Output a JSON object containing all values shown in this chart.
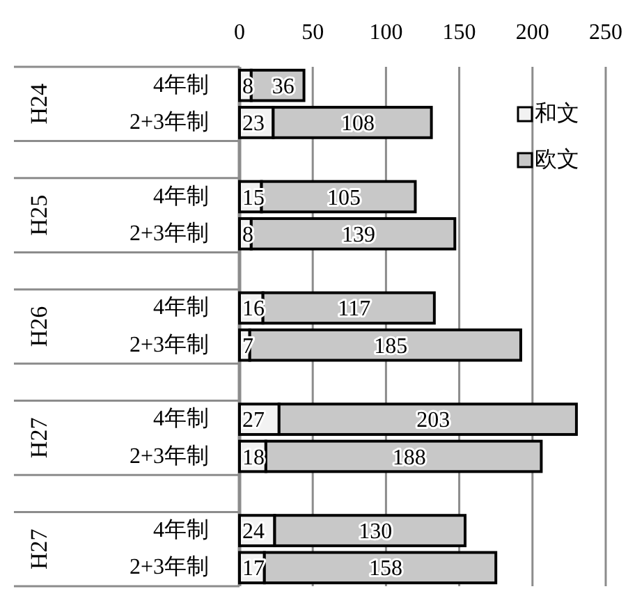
{
  "chart_data": {
    "type": "bar",
    "orientation": "horizontal",
    "stacked": true,
    "categories": [
      "4年制",
      "2+3年制",
      null,
      "4年制",
      "2+3年制",
      null,
      "4年制",
      "2+3年制",
      null,
      "4年制",
      "2+3年制",
      null,
      "4年制",
      "2+3年制"
    ],
    "series": [
      {
        "name": "和文",
        "color": "#f2f2f2",
        "values": [
          8,
          23,
          null,
          15,
          8,
          null,
          16,
          7,
          null,
          27,
          18,
          null,
          24,
          17
        ]
      },
      {
        "name": "欧文",
        "color": "#c8c8c8",
        "values": [
          36,
          108,
          null,
          105,
          139,
          null,
          117,
          185,
          null,
          203,
          188,
          null,
          130,
          158
        ]
      }
    ],
    "xlim": [
      0,
      250
    ],
    "xticks": [
      0,
      50,
      100,
      150,
      200,
      250
    ],
    "grid": "x",
    "legend": "right",
    "data_labels": true,
    "annotations": [
      "H24",
      "H25",
      "H26",
      "H27",
      "H27"
    ]
  }
}
